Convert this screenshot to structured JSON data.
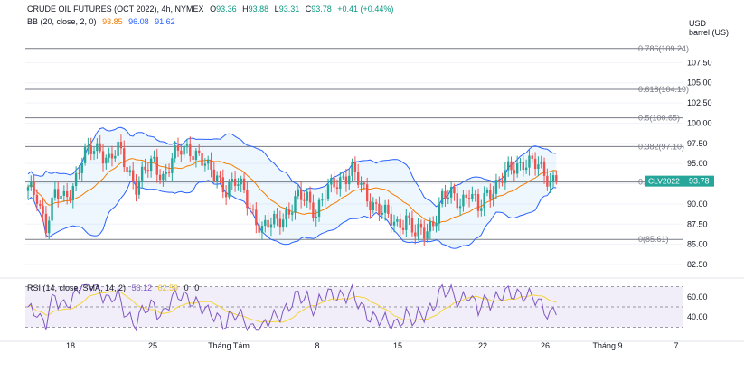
{
  "header": {
    "line1": {
      "symbol": "CRUDE OIL FUTURES (OCT 2022), 4h, NYMEX",
      "o_label": "O",
      "o_value": "93.36",
      "h_label": "H",
      "h_value": "93.88",
      "l_label": "L",
      "l_value": "93.31",
      "c_label": "C",
      "c_value": "93.78",
      "change": "+0.41 (+0.44%)"
    },
    "line2": {
      "indicator": "BB (20, close, 2, 0)",
      "basis": "93.85",
      "upper": "96.08",
      "lower": "91.62"
    }
  },
  "colors": {
    "up": "#26a69a",
    "down": "#ef5350",
    "bb_band": "#2962ff",
    "bb_basis": "#f57c00",
    "rsi_line": "#7e57c2",
    "rsi_sma": "#f5d33a"
  },
  "chart_data": {
    "type": "candlestick",
    "x_tick_labels": [
      "18",
      "25",
      "Tháng Tám",
      "8",
      "15",
      "22",
      "26",
      "Tháng 9",
      "7"
    ],
    "y_axis": {
      "unit_line1": "USD",
      "unit_line2": "barrel (US)",
      "ticks": [
        "107.50",
        "105.00",
        "102.50",
        "100.00",
        "97.50",
        "95.00",
        "92.50",
        "90.00",
        "87.50",
        "85.00",
        "82.50"
      ],
      "range": [
        81.5,
        111
      ]
    },
    "price_label": {
      "symbol": "CLV2022",
      "value": "93.78"
    },
    "fib_levels": [
      {
        "label": "0.786(109.24)",
        "price": 109.24
      },
      {
        "label": "0.618(104.19)",
        "price": 104.19
      },
      {
        "label": "0.5(100.65)",
        "price": 100.65
      },
      {
        "label": "0.382(97.10)",
        "price": 97.1
      },
      {
        "label": "0.236(92.71)",
        "price": 92.71
      },
      {
        "label": "0(85.61)",
        "price": 85.61
      }
    ],
    "close_anchors": [
      [
        0,
        91.5
      ],
      [
        3,
        91.0
      ],
      [
        6,
        87.5
      ],
      [
        9,
        91.0
      ],
      [
        12,
        90.5
      ],
      [
        15,
        92.5
      ],
      [
        18,
        95.5
      ],
      [
        21,
        96.5
      ],
      [
        24,
        97.0
      ],
      [
        27,
        95.5
      ],
      [
        30,
        96.5
      ],
      [
        33,
        94.5
      ],
      [
        36,
        92.5
      ],
      [
        39,
        94.0
      ],
      [
        42,
        95.0
      ],
      [
        45,
        93.5
      ],
      [
        48,
        95.5
      ],
      [
        51,
        96.5
      ],
      [
        54,
        97.0
      ],
      [
        57,
        96.0
      ],
      [
        60,
        94.0
      ],
      [
        63,
        93.5
      ],
      [
        66,
        92.0
      ],
      [
        69,
        92.5
      ],
      [
        72,
        91.5
      ],
      [
        75,
        89.0
      ],
      [
        78,
        86.5
      ],
      [
        81,
        87.5
      ],
      [
        84,
        88.5
      ],
      [
        87,
        89.0
      ],
      [
        90,
        90.5
      ],
      [
        93,
        91.0
      ],
      [
        96,
        89.0
      ],
      [
        99,
        91.0
      ],
      [
        102,
        92.5
      ],
      [
        105,
        93.5
      ],
      [
        108,
        94.0
      ],
      [
        111,
        92.0
      ],
      [
        114,
        90.5
      ],
      [
        117,
        89.5
      ],
      [
        120,
        88.0
      ],
      [
        123,
        87.5
      ],
      [
        126,
        88.5
      ],
      [
        129,
        86.0
      ],
      [
        132,
        86.5
      ],
      [
        135,
        88.0
      ],
      [
        138,
        90.5
      ],
      [
        141,
        91.0
      ],
      [
        144,
        90.5
      ],
      [
        147,
        91.5
      ],
      [
        150,
        89.0
      ],
      [
        153,
        91.5
      ],
      [
        156,
        92.5
      ],
      [
        159,
        93.5
      ],
      [
        162,
        94.5
      ],
      [
        165,
        95.5
      ],
      [
        168,
        95.0
      ],
      [
        171,
        94.0
      ],
      [
        174,
        93.0
      ],
      [
        176,
        93.8
      ]
    ],
    "rsi": {
      "label": "RSI (14, close, SMA, 14, 2)",
      "value": "56.12",
      "sma_value": "62.59",
      "extra1": "0",
      "extra2": "0",
      "ticks": [
        "60.00",
        "40.00"
      ],
      "upper_band": 70,
      "lower_band": 30
    }
  }
}
